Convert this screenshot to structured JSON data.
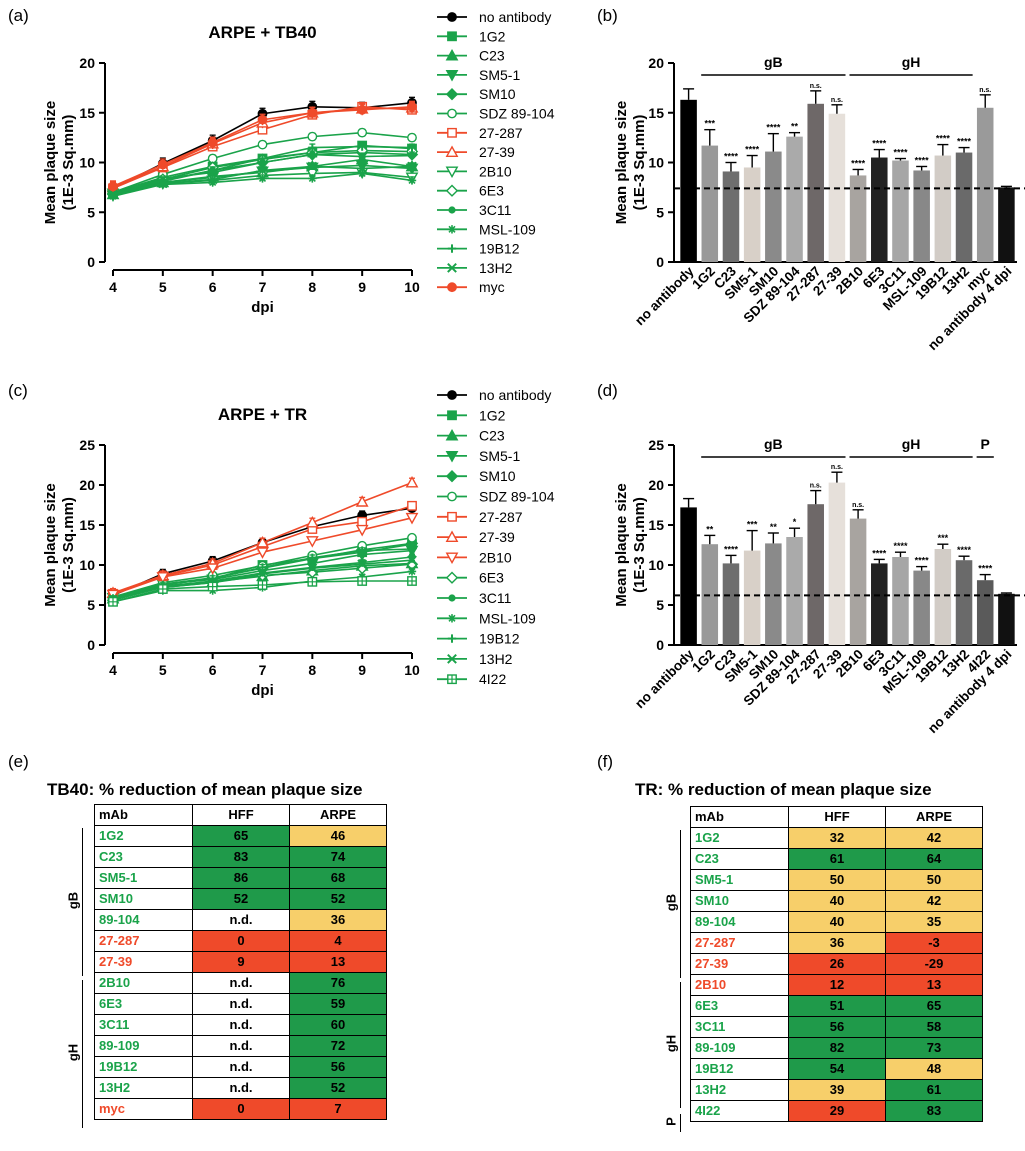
{
  "panels": {
    "a": "(a)",
    "b": "(b)",
    "c": "(c)",
    "d": "(d)",
    "e": "(e)",
    "f": "(f)"
  },
  "colors": {
    "black": "#000000",
    "green": "#1aa34a",
    "red": "#ef4a2a",
    "dark_green": "#1f9a4a",
    "yellow": "#f7cf6a"
  },
  "chart_data": [
    {
      "id": "a",
      "type": "line",
      "title": "ARPE + TB40",
      "xlabel": "dpi",
      "ylabel": "Mean plaque size (1E-3 Sq.mm)",
      "x": [
        4,
        5,
        6,
        7,
        8,
        9,
        10
      ],
      "xlim": [
        4,
        10
      ],
      "ylim": [
        0,
        20
      ],
      "yticks": [
        0,
        5,
        10,
        15,
        20
      ],
      "series": [
        {
          "name": "no antibody",
          "color": "black",
          "marker": "circle",
          "values": [
            7.4,
            9.9,
            12.2,
            14.9,
            15.6,
            15.5,
            16.0
          ]
        },
        {
          "name": "1G2",
          "color": "green",
          "marker": "square",
          "values": [
            7.0,
            8.5,
            9.6,
            10.4,
            11.0,
            11.7,
            11.4
          ]
        },
        {
          "name": "C23",
          "color": "green",
          "marker": "triangle-up",
          "values": [
            6.8,
            8.0,
            8.6,
            9.0,
            9.6,
            10.3,
            9.6
          ]
        },
        {
          "name": "SM5-1",
          "color": "green",
          "marker": "triangle-down",
          "values": [
            6.9,
            8.0,
            8.5,
            9.1,
            9.5,
            9.7,
            9.4
          ]
        },
        {
          "name": "SM10",
          "color": "green",
          "marker": "diamond",
          "values": [
            6.8,
            8.4,
            9.0,
            10.0,
            10.8,
            11.0,
            10.8
          ]
        },
        {
          "name": "SDZ 89-104",
          "color": "green",
          "marker": "circle-open",
          "values": [
            7.0,
            8.8,
            10.4,
            11.8,
            12.6,
            13.0,
            12.5
          ]
        },
        {
          "name": "27-287",
          "color": "red",
          "marker": "square-open",
          "values": [
            7.4,
            9.5,
            11.6,
            13.3,
            14.8,
            15.6,
            15.3
          ]
        },
        {
          "name": "27-39",
          "color": "red",
          "marker": "triangle-up-open",
          "values": [
            7.5,
            9.6,
            11.9,
            14.0,
            15.0,
            15.4,
            15.5
          ]
        },
        {
          "name": "2B10",
          "color": "green",
          "marker": "triangle-down-open",
          "values": [
            6.7,
            7.9,
            8.2,
            8.7,
            8.9,
            9.0,
            8.5
          ]
        },
        {
          "name": "6E3",
          "color": "green",
          "marker": "diamond-open",
          "values": [
            6.9,
            8.3,
            9.5,
            10.3,
            11.0,
            11.2,
            11.1
          ]
        },
        {
          "name": "3C11",
          "color": "green",
          "marker": "hexagon",
          "values": [
            6.9,
            8.1,
            9.2,
            10.0,
            10.8,
            10.6,
            10.7
          ]
        },
        {
          "name": "MSL-109",
          "color": "green",
          "marker": "star",
          "values": [
            6.6,
            7.8,
            8.0,
            8.4,
            8.4,
            8.9,
            8.2
          ]
        },
        {
          "name": "19B12",
          "color": "green",
          "marker": "plus",
          "values": [
            6.9,
            8.2,
            9.2,
            10.4,
            11.5,
            11.6,
            11.5
          ]
        },
        {
          "name": "13H2",
          "color": "green",
          "marker": "cross",
          "values": [
            6.9,
            7.9,
            8.3,
            9.2,
            9.6,
            9.4,
            9.6
          ]
        },
        {
          "name": "myc",
          "color": "red",
          "marker": "circle",
          "values": [
            7.6,
            9.8,
            12.0,
            14.3,
            15.0,
            15.3,
            15.6
          ]
        }
      ]
    },
    {
      "id": "b",
      "type": "bar",
      "ylabel": "Mean plaque size (1E-3 Sq.mm)",
      "ylim": [
        0,
        20
      ],
      "yticks": [
        0,
        5,
        10,
        15,
        20
      ],
      "baseline": 7.4,
      "groups": [
        {
          "label": "gB",
          "from": 1,
          "to": 7
        },
        {
          "label": "gH",
          "from": 8,
          "to": 13
        }
      ],
      "categories": [
        "no antibody",
        "1G2",
        "C23",
        "SM5-1",
        "SM10",
        "SDZ 89-104",
        "27-287",
        "27-39",
        "2B10",
        "6E3",
        "3C11",
        "MSL-109",
        "19B12",
        "13H2",
        "myc",
        "no antibody 4 dpi"
      ],
      "values": [
        16.3,
        11.7,
        9.1,
        9.5,
        11.1,
        12.6,
        15.9,
        14.9,
        8.7,
        10.5,
        10.2,
        9.2,
        10.7,
        11.0,
        15.5,
        7.5
      ],
      "errors": [
        1.1,
        1.6,
        0.9,
        1.2,
        1.8,
        0.4,
        1.3,
        0.9,
        0.6,
        0.8,
        0.2,
        0.4,
        1.1,
        0.5,
        1.3,
        0.1
      ],
      "significance": [
        "",
        "***",
        "****",
        "****",
        "****",
        "**",
        "n.s.",
        "n.s.",
        "****",
        "****",
        "****",
        "****",
        "****",
        "****",
        "n.s.",
        ""
      ],
      "shades": [
        "#000000",
        "#999999",
        "#6e6e6e",
        "#d8d0c8",
        "#8a8a8a",
        "#aaaaaa",
        "#6e6868",
        "#e6e0da",
        "#a8a4a0",
        "#222222",
        "#a6a6a6",
        "#888888",
        "#d2ccc6",
        "#6a6a6a",
        "#9a9a9a",
        "#111111"
      ]
    },
    {
      "id": "c",
      "type": "line",
      "title": "ARPE + TR",
      "xlabel": "dpi",
      "ylabel": "Mean plaque size (1E-3 Sq.mm)",
      "x": [
        4,
        5,
        6,
        7,
        8,
        9,
        10
      ],
      "xlim": [
        4,
        10
      ],
      "ylim": [
        0,
        25
      ],
      "yticks": [
        0,
        5,
        10,
        15,
        20,
        25
      ],
      "series": [
        {
          "name": "no antibody",
          "color": "black",
          "marker": "circle",
          "values": [
            6.2,
            8.9,
            10.5,
            12.8,
            14.8,
            16.2,
            17.1
          ]
        },
        {
          "name": "1G2",
          "color": "green",
          "marker": "square",
          "values": [
            5.9,
            7.6,
            8.3,
            10.0,
            10.8,
            11.6,
            12.6
          ]
        },
        {
          "name": "C23",
          "color": "green",
          "marker": "triangle-up",
          "values": [
            5.8,
            7.4,
            7.9,
            8.6,
            9.3,
            9.9,
            10.2
          ]
        },
        {
          "name": "SM5-1",
          "color": "green",
          "marker": "triangle-down",
          "values": [
            5.9,
            7.6,
            8.2,
            9.3,
            10.2,
            11.3,
            11.8
          ]
        },
        {
          "name": "SM10",
          "color": "green",
          "marker": "diamond",
          "values": [
            5.9,
            7.6,
            8.4,
            9.6,
            10.8,
            11.9,
            12.7
          ]
        },
        {
          "name": "SDZ 89-104",
          "color": "green",
          "marker": "circle-open",
          "values": [
            6.0,
            7.8,
            8.7,
            9.9,
            11.2,
            12.4,
            13.4
          ]
        },
        {
          "name": "27-287",
          "color": "red",
          "marker": "square-open",
          "values": [
            6.4,
            8.6,
            10.0,
            12.3,
            14.5,
            15.4,
            17.4
          ]
        },
        {
          "name": "27-39",
          "color": "red",
          "marker": "triangle-up-open",
          "values": [
            6.5,
            8.7,
            10.2,
            12.8,
            15.3,
            17.9,
            20.3
          ]
        },
        {
          "name": "2B10",
          "color": "red",
          "marker": "triangle-down-open",
          "values": [
            6.3,
            8.5,
            9.6,
            11.6,
            13.0,
            14.4,
            15.9
          ]
        },
        {
          "name": "6E3",
          "color": "green",
          "marker": "diamond-open",
          "values": [
            5.6,
            7.2,
            7.8,
            8.7,
            9.1,
            9.6,
            10.1
          ]
        },
        {
          "name": "3C11",
          "color": "green",
          "marker": "hexagon",
          "values": [
            5.7,
            7.3,
            8.0,
            9.0,
            9.7,
            10.3,
            11.0
          ]
        },
        {
          "name": "MSL-109",
          "color": "green",
          "marker": "star",
          "values": [
            5.4,
            6.8,
            6.8,
            7.2,
            8.0,
            8.5,
            9.2
          ]
        },
        {
          "name": "19B12",
          "color": "green",
          "marker": "plus",
          "values": [
            5.8,
            7.5,
            8.3,
            9.7,
            10.9,
            11.8,
            12.0
          ]
        },
        {
          "name": "13H2",
          "color": "green",
          "marker": "cross",
          "values": [
            5.7,
            7.2,
            7.8,
            8.9,
            9.6,
            10.1,
            10.6
          ]
        },
        {
          "name": "4I22",
          "color": "green",
          "marker": "square-cross",
          "values": [
            5.4,
            7.0,
            7.3,
            7.5,
            7.9,
            8.0,
            8.0
          ]
        }
      ]
    },
    {
      "id": "d",
      "type": "bar",
      "ylabel": "Mean plaque size (1E-3 Sq.mm)",
      "ylim": [
        0,
        25
      ],
      "yticks": [
        0,
        5,
        10,
        15,
        20,
        25
      ],
      "baseline": 6.2,
      "groups": [
        {
          "label": "gB",
          "from": 1,
          "to": 7
        },
        {
          "label": "gH",
          "from": 8,
          "to": 13
        },
        {
          "label": "P",
          "from": 14,
          "to": 14
        }
      ],
      "categories": [
        "no antibody",
        "1G2",
        "C23",
        "SM5-1",
        "SM10",
        "SDZ 89-104",
        "27-287",
        "27-39",
        "2B10",
        "6E3",
        "3C11",
        "MSL-109",
        "19B12",
        "13H2",
        "4I22",
        "no antibody 4 dpi"
      ],
      "values": [
        17.2,
        12.6,
        10.2,
        11.8,
        12.7,
        13.5,
        17.6,
        20.3,
        15.8,
        10.2,
        11.0,
        9.3,
        12.0,
        10.6,
        8.1,
        6.4
      ],
      "errors": [
        1.1,
        1.1,
        1.0,
        2.5,
        1.3,
        1.1,
        1.7,
        1.3,
        1.1,
        0.5,
        0.6,
        0.5,
        0.6,
        0.5,
        0.7,
        0.1
      ],
      "significance": [
        "",
        "**",
        "****",
        "***",
        "**",
        "*",
        "n.s.",
        "n.s.",
        "n.s.",
        "****",
        "****",
        "****",
        "***",
        "****",
        "****",
        ""
      ],
      "shades": [
        "#000000",
        "#999999",
        "#6e6e6e",
        "#d8d0c8",
        "#8a8a8a",
        "#aaaaaa",
        "#6e6868",
        "#e6e0da",
        "#a8a4a0",
        "#222222",
        "#a6a6a6",
        "#888888",
        "#d2ccc6",
        "#6a6a6a",
        "#5a5a5a",
        "#111111"
      ]
    }
  ],
  "table_e": {
    "title": "TB40: % reduction of mean plaque size",
    "headers": [
      "mAb",
      "HFF",
      "ARPE"
    ],
    "group_gB": "gB",
    "group_gH": "gH",
    "rows": [
      {
        "mab": "1G2",
        "hff": "65",
        "arpe": "46",
        "lc": "lg",
        "hc": "g",
        "ac": "y"
      },
      {
        "mab": "C23",
        "hff": "83",
        "arpe": "74",
        "lc": "lg",
        "hc": "g",
        "ac": "g"
      },
      {
        "mab": "SM5-1",
        "hff": "86",
        "arpe": "68",
        "lc": "lg",
        "hc": "g",
        "ac": "g"
      },
      {
        "mab": "SM10",
        "hff": "52",
        "arpe": "52",
        "lc": "lg",
        "hc": "g",
        "ac": "g"
      },
      {
        "mab": "89-104",
        "hff": "n.d.",
        "arpe": "36",
        "lc": "lg",
        "hc": "w",
        "ac": "y"
      },
      {
        "mab": "27-287",
        "hff": "0",
        "arpe": "4",
        "lc": "lr",
        "hc": "r",
        "ac": "r"
      },
      {
        "mab": "27-39",
        "hff": "9",
        "arpe": "13",
        "lc": "lr",
        "hc": "r",
        "ac": "r"
      },
      {
        "mab": "2B10",
        "hff": "n.d.",
        "arpe": "76",
        "lc": "lg",
        "hc": "w",
        "ac": "g"
      },
      {
        "mab": "6E3",
        "hff": "n.d.",
        "arpe": "59",
        "lc": "lg",
        "hc": "w",
        "ac": "g"
      },
      {
        "mab": "3C11",
        "hff": "n.d.",
        "arpe": "60",
        "lc": "lg",
        "hc": "w",
        "ac": "g"
      },
      {
        "mab": "89-109",
        "hff": "n.d.",
        "arpe": "72",
        "lc": "lg",
        "hc": "w",
        "ac": "g"
      },
      {
        "mab": "19B12",
        "hff": "n.d.",
        "arpe": "56",
        "lc": "lg",
        "hc": "w",
        "ac": "g"
      },
      {
        "mab": "13H2",
        "hff": "n.d.",
        "arpe": "52",
        "lc": "lg",
        "hc": "w",
        "ac": "g"
      },
      {
        "mab": "myc",
        "hff": "0",
        "arpe": "7",
        "lc": "lr",
        "hc": "r",
        "ac": "r"
      }
    ]
  },
  "table_f": {
    "title": "TR: % reduction of mean plaque size",
    "headers": [
      "mAb",
      "HFF",
      "ARPE"
    ],
    "group_gB": "gB",
    "group_gH": "gH",
    "group_P": "P",
    "rows": [
      {
        "mab": "1G2",
        "hff": "32",
        "arpe": "42",
        "lc": "lg",
        "hc": "y",
        "ac": "y"
      },
      {
        "mab": "C23",
        "hff": "61",
        "arpe": "64",
        "lc": "lg",
        "hc": "g",
        "ac": "g"
      },
      {
        "mab": "SM5-1",
        "hff": "50",
        "arpe": "50",
        "lc": "lg",
        "hc": "y",
        "ac": "y"
      },
      {
        "mab": "SM10",
        "hff": "40",
        "arpe": "42",
        "lc": "lg",
        "hc": "y",
        "ac": "y"
      },
      {
        "mab": "89-104",
        "hff": "40",
        "arpe": "35",
        "lc": "lg",
        "hc": "y",
        "ac": "y"
      },
      {
        "mab": "27-287",
        "hff": "36",
        "arpe": "-3",
        "lc": "lr",
        "hc": "y",
        "ac": "r"
      },
      {
        "mab": "27-39",
        "hff": "26",
        "arpe": "-29",
        "lc": "lr",
        "hc": "r",
        "ac": "r"
      },
      {
        "mab": "2B10",
        "hff": "12",
        "arpe": "13",
        "lc": "lr",
        "hc": "r",
        "ac": "r"
      },
      {
        "mab": "6E3",
        "hff": "51",
        "arpe": "65",
        "lc": "lg",
        "hc": "g",
        "ac": "g"
      },
      {
        "mab": "3C11",
        "hff": "56",
        "arpe": "58",
        "lc": "lg",
        "hc": "g",
        "ac": "g"
      },
      {
        "mab": "89-109",
        "hff": "82",
        "arpe": "73",
        "lc": "lg",
        "hc": "g",
        "ac": "g"
      },
      {
        "mab": "19B12",
        "hff": "54",
        "arpe": "48",
        "lc": "lg",
        "hc": "g",
        "ac": "y"
      },
      {
        "mab": "13H2",
        "hff": "39",
        "arpe": "61",
        "lc": "lg",
        "hc": "y",
        "ac": "g"
      },
      {
        "mab": "4I22",
        "hff": "29",
        "arpe": "83",
        "lc": "lg",
        "hc": "r",
        "ac": "g"
      }
    ]
  }
}
